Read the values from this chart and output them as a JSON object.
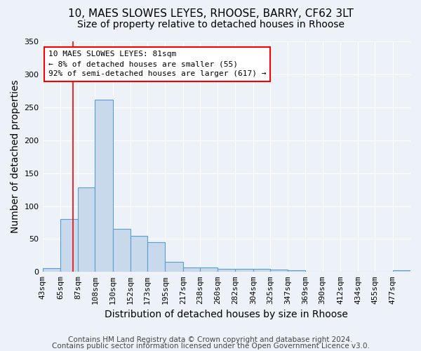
{
  "title1": "10, MAES SLOWES LEYES, RHOOSE, BARRY, CF62 3LT",
  "title2": "Size of property relative to detached houses in Rhoose",
  "xlabel": "Distribution of detached houses by size in Rhoose",
  "ylabel": "Number of detached properties",
  "footnote1": "Contains HM Land Registry data © Crown copyright and database right 2024.",
  "footnote2": "Contains public sector information licensed under the Open Government Licence v3.0.",
  "bin_labels": [
    "43sqm",
    "65sqm",
    "87sqm",
    "108sqm",
    "130sqm",
    "152sqm",
    "173sqm",
    "195sqm",
    "217sqm",
    "238sqm",
    "260sqm",
    "282sqm",
    "304sqm",
    "325sqm",
    "347sqm",
    "369sqm",
    "390sqm",
    "412sqm",
    "434sqm",
    "455sqm",
    "477sqm"
  ],
  "bin_edges": [
    43,
    65,
    87,
    108,
    130,
    152,
    173,
    195,
    217,
    238,
    260,
    282,
    304,
    325,
    347,
    369,
    390,
    412,
    434,
    455,
    477,
    499
  ],
  "counts": [
    6,
    80,
    128,
    262,
    65,
    55,
    45,
    15,
    7,
    7,
    5,
    5,
    5,
    3,
    2,
    0,
    0,
    0,
    0,
    0,
    2
  ],
  "bar_color": "#c8d9eb",
  "bar_edge_color": "#5a9ed6",
  "red_line_x": 81,
  "annotation_line1": "10 MAES SLOWES LEYES: 81sqm",
  "annotation_line2": "← 8% of detached houses are smaller (55)",
  "annotation_line3": "92% of semi-detached houses are larger (617) →",
  "annotation_box_color": "white",
  "annotation_box_edge_color": "red",
  "ylim": [
    0,
    350
  ],
  "background_color": "#edf2f9",
  "grid_color": "white",
  "title1_fontsize": 11,
  "title2_fontsize": 10,
  "axis_label_fontsize": 10,
  "tick_fontsize": 8,
  "footnote_fontsize": 7.5,
  "annotation_fontsize": 8
}
